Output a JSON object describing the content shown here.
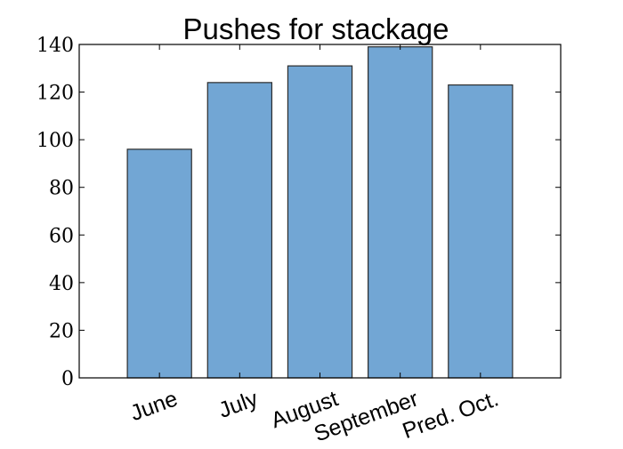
{
  "chart_data": {
    "type": "bar",
    "title": "Pushes for stackage",
    "xlabel": "",
    "ylabel": "",
    "categories": [
      "June",
      "July",
      "August",
      "September",
      "Pred. Oct."
    ],
    "values": [
      96,
      124,
      131,
      139,
      123
    ],
    "ylim": [
      0,
      140
    ],
    "yticks": [
      "0",
      "20",
      "40",
      "60",
      "80",
      "100",
      "120",
      "140"
    ],
    "grid": false,
    "legend": "none",
    "bar_color": "#72a6d4",
    "edge_color": "#2b2b2b",
    "xtick_rotation_deg": -20
  }
}
